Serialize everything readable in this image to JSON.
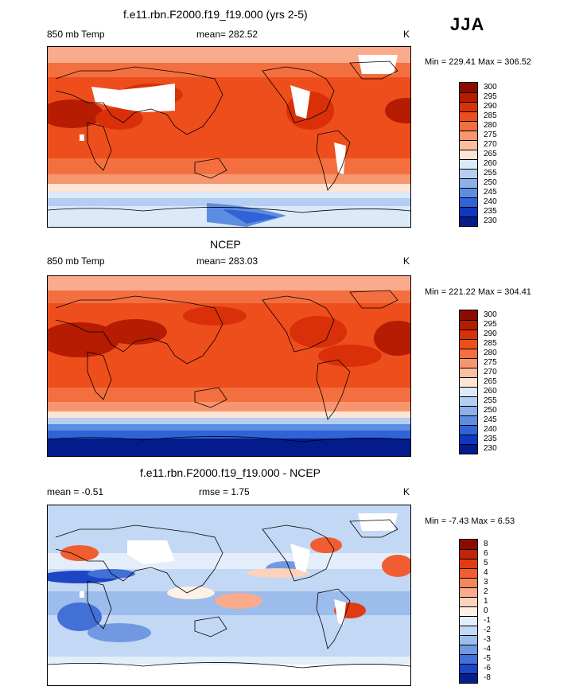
{
  "season": "JJA",
  "panels": [
    {
      "title": "f.e11.rbn.F2000.f19_f19.000 (yrs 2-5)",
      "left_label": "850 mb Temp",
      "center_label": "mean= 282.52",
      "unit": "K",
      "minmax": "Min = 229.41 Max = 306.52",
      "levels": [
        "300",
        "295",
        "290",
        "285",
        "280",
        "275",
        "270",
        "265",
        "260",
        "255",
        "250",
        "245",
        "240",
        "235",
        "230"
      ],
      "colors": [
        "#8c0a00",
        "#b51c02",
        "#d9300a",
        "#ee4e1c",
        "#f46f3f",
        "#f7966e",
        "#fabf9f",
        "#fee4d4",
        "#dbe9f9",
        "#b4cef2",
        "#8bb0ea",
        "#5d8de1",
        "#2f63d6",
        "#1037bf",
        "#041b8c"
      ]
    },
    {
      "title": "NCEP",
      "left_label": "850 mb Temp",
      "center_label": "mean= 283.03",
      "unit": "K",
      "minmax": "Min = 221.22 Max = 304.41",
      "levels": [
        "300",
        "295",
        "290",
        "285",
        "280",
        "275",
        "270",
        "265",
        "260",
        "255",
        "250",
        "245",
        "240",
        "235",
        "230"
      ],
      "colors": [
        "#8c0a00",
        "#b51c02",
        "#d9300a",
        "#ee4e1c",
        "#f46f3f",
        "#f7966e",
        "#fabf9f",
        "#fee4d4",
        "#dbe9f9",
        "#b4cef2",
        "#8bb0ea",
        "#5d8de1",
        "#2f63d6",
        "#1037bf",
        "#041b8c"
      ]
    },
    {
      "title": "f.e11.rbn.F2000.f19_f19.000 - NCEP",
      "left_label": "mean =  -0.51",
      "center_label": "rmse =   1.75",
      "unit": "K",
      "minmax": "Min =  -7.43 Max =   6.53",
      "levels": [
        "8",
        "6",
        "5",
        "4",
        "3",
        "2",
        "1",
        "0",
        "-1",
        "-2",
        "-3",
        "-4",
        "-5",
        "-6",
        "-8"
      ],
      "colors": [
        "#8c0a00",
        "#c0240a",
        "#e03c14",
        "#f05d30",
        "#f5855b",
        "#f9ab8c",
        "#fcd2bd",
        "#fff0e6",
        "#e4eefa",
        "#c3d8f4",
        "#9cbcec",
        "#7199e2",
        "#4370d7",
        "#1d45c4",
        "#061f8e"
      ]
    }
  ]
}
